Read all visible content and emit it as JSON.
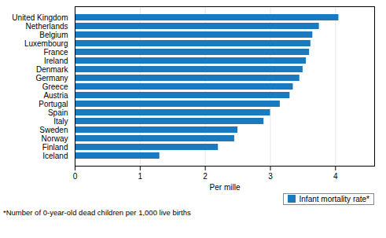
{
  "chart_data": {
    "type": "bar",
    "orientation": "horizontal",
    "categories": [
      "Iceland",
      "Finland",
      "Norway",
      "Sweden",
      "Italy",
      "Spain",
      "Portugal",
      "Austria",
      "Greece",
      "Germany",
      "Denmark",
      "Ireland",
      "France",
      "Luxembourg",
      "Belgium",
      "Netherlands",
      "United Kingdom"
    ],
    "series": [
      {
        "name": "Infant mortality rate*",
        "color": "#1a7abf",
        "values": [
          1.3,
          2.2,
          2.45,
          2.5,
          2.9,
          3.0,
          3.15,
          3.3,
          3.35,
          3.45,
          3.5,
          3.55,
          3.6,
          3.62,
          3.65,
          3.75,
          4.05
        ]
      }
    ],
    "xlabel": "Per mille",
    "xlim": [
      0,
      4.6
    ],
    "xticks": [
      0,
      1,
      2,
      3,
      4
    ],
    "grid": true,
    "legend": "lower right",
    "annotations": [
      "*Number of 0-year-old dead children per 1,000 live births"
    ]
  }
}
